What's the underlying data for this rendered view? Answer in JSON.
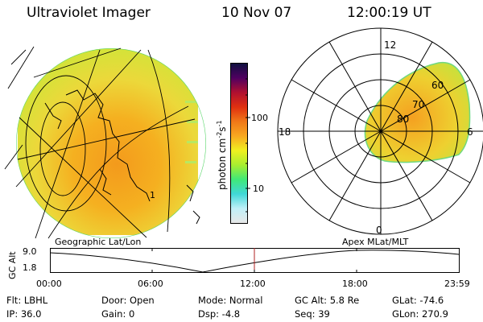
{
  "header": {
    "instrument": "Ultraviolet Imager",
    "date": "10 Nov 07",
    "time": "12:00:19 UT"
  },
  "colorbar": {
    "unit_label": "photon cm",
    "unit_exp1": "-2",
    "unit_mid": "s",
    "unit_exp2": "-1",
    "tick_100": "100",
    "tick_10": "10",
    "stops": [
      "#e8e8e8",
      "#c0f0f8",
      "#40d8d8",
      "#40e878",
      "#a8ee30",
      "#f0f020",
      "#f8a820",
      "#f07818",
      "#e03010",
      "#b01030",
      "#500060",
      "#101040"
    ]
  },
  "geo_panel": {
    "label": "Geographic Lat/Lon",
    "ring_label": "1"
  },
  "polar_panel": {
    "label": "Apex MLat/MLT",
    "mlt_top": "12",
    "mlt_left": "18",
    "mlt_right": "6",
    "mlt_bottom": "0",
    "lat_rings": [
      "80",
      "70",
      "60"
    ]
  },
  "altitude_plot": {
    "ylabel": "GC Alt",
    "ytick_top": "9.0",
    "ytick_bottom": "1.8",
    "xticks": [
      "00:00",
      "06:00",
      "12:00",
      "18:00",
      "23:59"
    ],
    "curve_color": "#000000",
    "marker_color": "#b02020"
  },
  "params": {
    "flt": "Flt: LBHL",
    "ip": "IP: 36.0",
    "door": "Door: Open",
    "gain": "Gain:  0",
    "mode": "Mode: Normal",
    "dsp": "Dsp:    -4.8",
    "gcalt": "GC Alt: 5.8 Re",
    "seq": "Seq: 39",
    "glat": "GLat: -74.6",
    "glon": "GLon: 270.9"
  }
}
